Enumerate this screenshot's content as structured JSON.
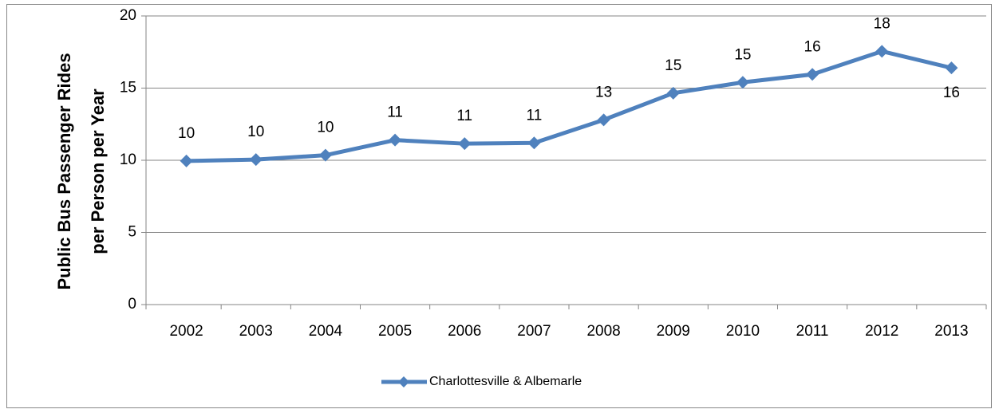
{
  "chart_data": {
    "type": "line",
    "ylabel": [
      "Public Bus Passenger Rides",
      "per Person per Year"
    ],
    "categories": [
      "2002",
      "2003",
      "2004",
      "2005",
      "2006",
      "2007",
      "2008",
      "2009",
      "2010",
      "2011",
      "2012",
      "2013"
    ],
    "series": [
      {
        "name": "Charlottesville & Albemarle",
        "color": "#4f81bd",
        "values": [
          9.95,
          10.05,
          10.35,
          11.4,
          11.15,
          11.2,
          12.8,
          14.65,
          15.4,
          15.95,
          17.55,
          16.4
        ],
        "value_labels": [
          "10",
          "10",
          "10",
          "11",
          "11",
          "11",
          "13",
          "15",
          "15",
          "16",
          "18",
          "16"
        ]
      }
    ],
    "ylim": [
      0,
      20
    ],
    "yticks": [
      0,
      5,
      10,
      15,
      20
    ],
    "grid": true,
    "legend": "bottom"
  }
}
